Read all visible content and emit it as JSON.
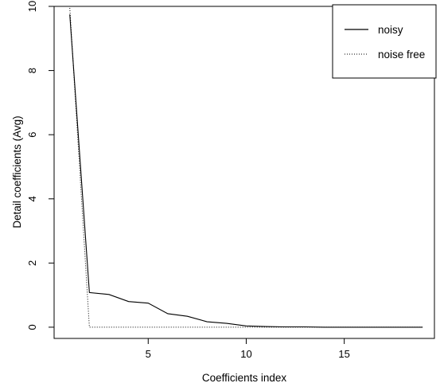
{
  "chart_data": {
    "type": "line",
    "title": "",
    "xlabel": "Coefficients index",
    "ylabel": "Detail coefficients (Avg)",
    "xlim": [
      0.2,
      19.6
    ],
    "ylim": [
      -0.35,
      10.0
    ],
    "x_ticks": [
      5,
      10,
      15
    ],
    "y_ticks": [
      0,
      2,
      4,
      6,
      8,
      10
    ],
    "x_tick_labels": [
      "5",
      "10",
      "15"
    ],
    "y_tick_labels": [
      "0",
      "2",
      "4",
      "6",
      "8",
      "10"
    ],
    "grid": false,
    "legend": {
      "position": "top-right"
    },
    "x": [
      1,
      2,
      3,
      4,
      5,
      6,
      7,
      8,
      9,
      10,
      11,
      12,
      13,
      14,
      15,
      16,
      17,
      18,
      19
    ],
    "series": [
      {
        "name": "noisy",
        "style": "solid",
        "values": [
          9.75,
          1.08,
          1.02,
          0.8,
          0.75,
          0.42,
          0.34,
          0.17,
          0.12,
          0.04,
          0.02,
          0.01,
          0.01,
          0.0,
          0.0,
          0.0,
          0.0,
          0.0,
          0.0
        ]
      },
      {
        "name": "noise free",
        "style": "dotted",
        "values": [
          9.95,
          0.0,
          0.0,
          0.0,
          0.0,
          0.0,
          0.0,
          0.0,
          0.0,
          0.0,
          0.0,
          0.0,
          0.0,
          0.0,
          0.0,
          0.0,
          0.0,
          0.0,
          0.0
        ]
      }
    ]
  }
}
